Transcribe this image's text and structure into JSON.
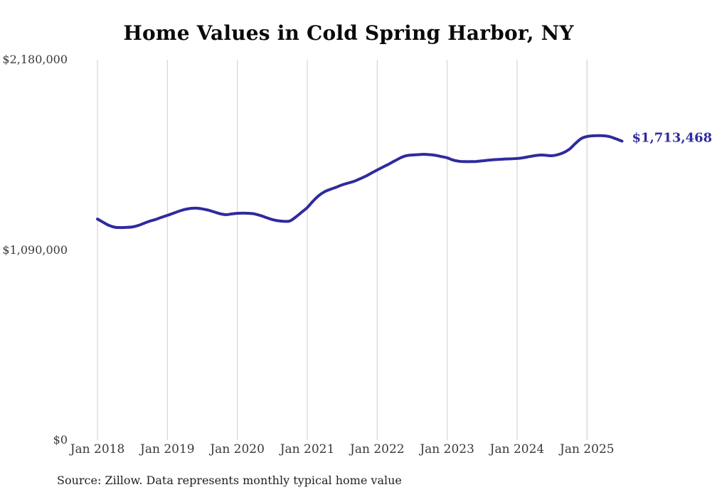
{
  "source_note": "Source: Zillow. Data represents monthly typical home value",
  "colors": {
    "line": "#2e2b9e",
    "grid": "#cccccc",
    "title_text": "#0a0a0a",
    "axis_text": "#3a3a3a",
    "source_text": "#1f1f1f",
    "background": "#ffffff"
  },
  "chart_data": {
    "type": "line",
    "title": "Home Values in Cold Spring Harbor, NY",
    "series_name": "Typical home value (monthly)",
    "end_label": "$1,713,468",
    "final_value": 1713468,
    "ylim": [
      0,
      2180000
    ],
    "grid": "vertical-only",
    "legend": "none",
    "line_color": "#2e2b9e",
    "grid_color": "#cccccc",
    "y_ticks": [
      {
        "label": "$2,180,000",
        "value": 2180000
      },
      {
        "label": "$1,090,000",
        "value": 1090000
      },
      {
        "label": "$0",
        "value": 0
      }
    ],
    "x_tick_labels": [
      "Jan 2018",
      "Jan 2019",
      "Jan 2020",
      "Jan 2021",
      "Jan 2022",
      "Jan 2023",
      "Jan 2024",
      "Jan 2025"
    ],
    "months": [
      "2018-01",
      "2018-02",
      "2018-03",
      "2018-04",
      "2018-05",
      "2018-06",
      "2018-07",
      "2018-08",
      "2018-09",
      "2018-10",
      "2018-11",
      "2018-12",
      "2019-01",
      "2019-02",
      "2019-03",
      "2019-04",
      "2019-05",
      "2019-06",
      "2019-07",
      "2019-08",
      "2019-09",
      "2019-10",
      "2019-11",
      "2019-12",
      "2020-01",
      "2020-02",
      "2020-03",
      "2020-04",
      "2020-05",
      "2020-06",
      "2020-07",
      "2020-08",
      "2020-09",
      "2020-10",
      "2020-11",
      "2020-12",
      "2021-01",
      "2021-02",
      "2021-03",
      "2021-04",
      "2021-05",
      "2021-06",
      "2021-07",
      "2021-08",
      "2021-09",
      "2021-10",
      "2021-11",
      "2021-12",
      "2022-01",
      "2022-02",
      "2022-03",
      "2022-04",
      "2022-05",
      "2022-06",
      "2022-07",
      "2022-08",
      "2022-09",
      "2022-10",
      "2022-11",
      "2022-12",
      "2023-01",
      "2023-02",
      "2023-03",
      "2023-04",
      "2023-05",
      "2023-06",
      "2023-07",
      "2023-08",
      "2023-09",
      "2023-10",
      "2023-11",
      "2023-12",
      "2024-01",
      "2024-02",
      "2024-03",
      "2024-04",
      "2024-05",
      "2024-06",
      "2024-07",
      "2024-08",
      "2024-09",
      "2024-10",
      "2024-11",
      "2024-12",
      "2025-01",
      "2025-02",
      "2025-03",
      "2025-04",
      "2025-05",
      "2025-06",
      "2025-07"
    ],
    "values": [
      1267000,
      1248000,
      1230000,
      1220000,
      1218000,
      1219000,
      1222000,
      1230000,
      1243000,
      1255000,
      1265000,
      1277000,
      1288000,
      1300000,
      1312000,
      1322000,
      1328000,
      1329000,
      1325000,
      1318000,
      1308000,
      1298000,
      1292000,
      1296000,
      1300000,
      1301000,
      1300000,
      1296000,
      1287000,
      1275000,
      1264000,
      1257000,
      1254000,
      1256000,
      1278000,
      1305000,
      1333000,
      1370000,
      1402000,
      1424000,
      1438000,
      1450000,
      1463000,
      1473000,
      1483000,
      1497000,
      1512000,
      1530000,
      1548000,
      1565000,
      1582000,
      1600000,
      1618000,
      1630000,
      1634000,
      1636000,
      1638000,
      1636000,
      1632000,
      1625000,
      1618000,
      1605000,
      1598000,
      1596000,
      1596000,
      1597000,
      1600000,
      1604000,
      1607000,
      1609000,
      1611000,
      1612000,
      1614000,
      1618000,
      1624000,
      1630000,
      1634000,
      1632000,
      1630000,
      1636000,
      1648000,
      1668000,
      1700000,
      1728000,
      1740000,
      1744000,
      1745000,
      1744000,
      1738000,
      1726000,
      1713468
    ]
  }
}
